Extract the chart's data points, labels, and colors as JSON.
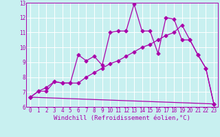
{
  "xlabel": "Windchill (Refroidissement éolien,°C)",
  "xlim": [
    -0.5,
    23.5
  ],
  "ylim": [
    6,
    13
  ],
  "xticks": [
    0,
    1,
    2,
    3,
    4,
    5,
    6,
    7,
    8,
    9,
    10,
    11,
    12,
    13,
    14,
    15,
    16,
    17,
    18,
    19,
    20,
    21,
    22,
    23
  ],
  "yticks": [
    6,
    7,
    8,
    9,
    10,
    11,
    12,
    13
  ],
  "bg_color": "#c8f0f0",
  "grid_color": "#ffffff",
  "line_color": "#aa00aa",
  "line1_x": [
    0,
    1,
    2,
    3,
    4,
    5,
    6,
    7,
    8,
    9,
    10,
    11,
    12,
    13,
    14,
    15,
    16,
    17,
    18,
    19,
    20,
    21,
    22,
    23
  ],
  "line1_y": [
    6.65,
    7.05,
    7.05,
    7.7,
    7.6,
    7.6,
    9.5,
    9.1,
    9.4,
    8.8,
    11.0,
    11.1,
    11.1,
    12.9,
    11.1,
    11.1,
    9.6,
    12.0,
    11.9,
    10.5,
    10.5,
    9.5,
    8.6,
    6.2
  ],
  "line2_x": [
    0,
    1,
    2,
    3,
    4,
    5,
    6,
    7,
    8,
    9,
    10,
    11,
    12,
    13,
    14,
    15,
    16,
    17,
    18,
    19,
    20,
    21,
    22,
    23
  ],
  "line2_y": [
    6.65,
    7.05,
    7.3,
    7.7,
    7.6,
    7.6,
    7.6,
    8.0,
    8.3,
    8.6,
    8.9,
    9.1,
    9.4,
    9.7,
    10.0,
    10.2,
    10.5,
    10.8,
    11.0,
    11.5,
    10.5,
    9.5,
    8.6,
    6.2
  ],
  "line3_x": [
    0,
    23
  ],
  "line3_y": [
    6.65,
    6.2
  ],
  "marker": "D",
  "marker_size": 2.5,
  "font_family": "monospace",
  "tick_fontsize": 5.5,
  "xlabel_fontsize": 6.5,
  "linewidth": 0.9
}
